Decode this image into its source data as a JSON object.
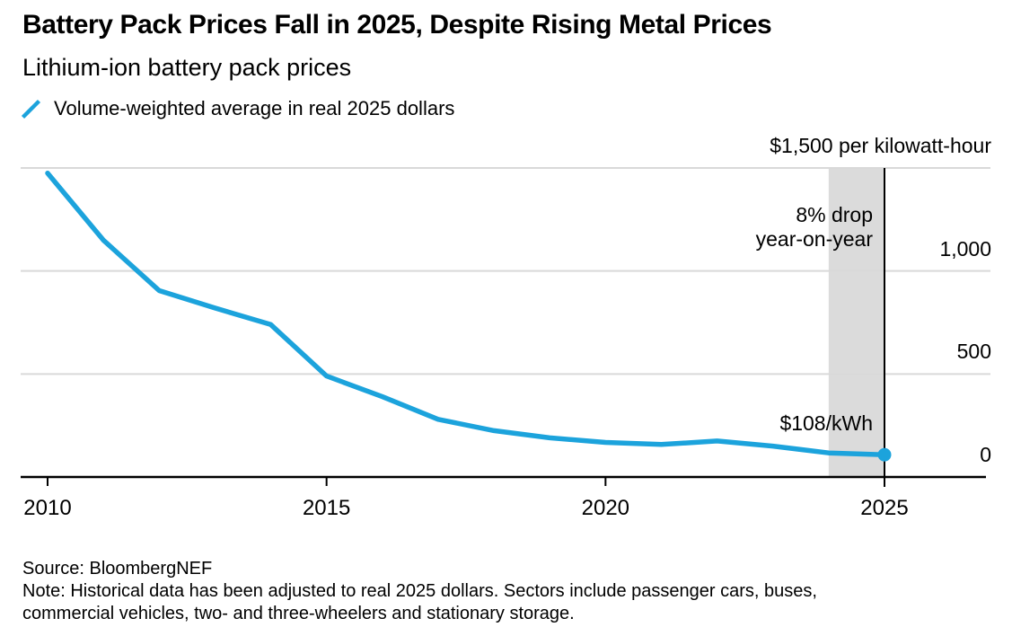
{
  "chart_data": {
    "type": "line",
    "title": "Battery Pack Prices Fall in 2025, Despite Rising Metal Prices",
    "subtitle": "Lithium-ion battery pack prices",
    "ylabel": "$ per kilowatt-hour",
    "x": [
      2010,
      2011,
      2012,
      2013,
      2014,
      2015,
      2016,
      2017,
      2018,
      2019,
      2020,
      2021,
      2022,
      2023,
      2024,
      2025
    ],
    "series": [
      {
        "name": "Volume-weighted average in real 2025 dollars",
        "values": [
          1475,
          1150,
          905,
          820,
          740,
          490,
          390,
          280,
          225,
          190,
          168,
          158,
          175,
          150,
          117,
          108
        ]
      }
    ],
    "xlim": [
      2010,
      2025
    ],
    "ylim": [
      0,
      1500
    ],
    "x_ticks": [
      2010,
      2015,
      2020,
      2025
    ],
    "x_tick_labels": [
      "2010",
      "2015",
      "2020",
      "2025"
    ],
    "y_gridlines": [
      500,
      1000,
      1500
    ],
    "y_axis_labels": [
      {
        "value": 1500,
        "text": "$1,500 per kilowatt-hour"
      },
      {
        "value": 1000,
        "text": "1,000"
      },
      {
        "value": 500,
        "text": "500"
      },
      {
        "value": 0,
        "text": "0"
      }
    ],
    "grid": "horizontal",
    "legend_position": "top-left",
    "highlight_band": {
      "from": 2024,
      "to": 2025
    },
    "end_line_x": 2025,
    "end_marker": {
      "x": 2025,
      "value": 108
    },
    "annotations": {
      "drop_line1": "8% drop",
      "drop_line2": "year-on-year",
      "price": "$108/kWh"
    },
    "colors": {
      "line": "#1CA3DC",
      "band": "#DBDBDB",
      "grid": "#D9D9D9",
      "axis": "#000000"
    }
  },
  "footer": {
    "source": "Source: BloombergNEF",
    "note_line1": "Note: Historical data has been adjusted to real 2025 dollars. Sectors include passenger cars, buses,",
    "note_line2": "commercial vehicles, two- and three-wheelers and stationary storage."
  }
}
